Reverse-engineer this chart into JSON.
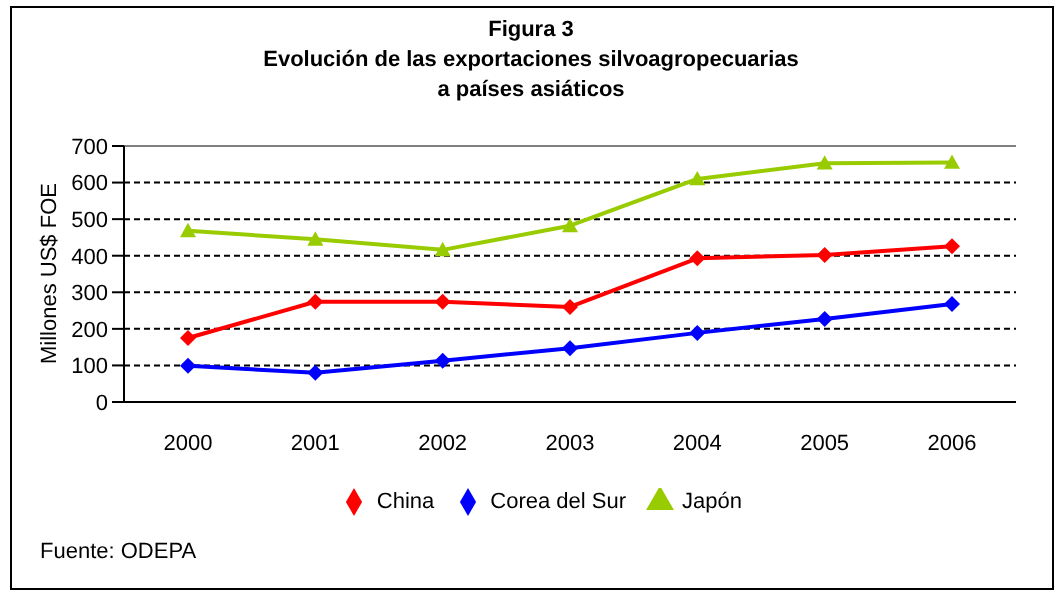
{
  "chart_data": {
    "type": "line",
    "title": "Figura 3",
    "subtitle": "Evolución de las exportaciones silvoagropecuarias\na países asiáticos",
    "ylabel": "Millones US$ FOE",
    "categories": [
      "2000",
      "2001",
      "2002",
      "2003",
      "2004",
      "2005",
      "2006"
    ],
    "series": [
      {
        "name": "Corea del Sur",
        "color": "#0000ff",
        "marker": "diamond",
        "values": [
          99,
          80,
          113,
          147,
          189,
          227,
          268
        ]
      },
      {
        "name": "China",
        "color": "#ff0000",
        "marker": "diamond",
        "values": [
          175,
          274,
          274,
          260,
          393,
          402,
          426
        ]
      },
      {
        "name": "Japón",
        "color": "#99cc00",
        "marker": "triangle",
        "values": [
          468,
          445,
          416,
          482,
          610,
          653,
          655
        ]
      }
    ],
    "ylim": [
      0,
      700
    ],
    "yticks": [
      0,
      100,
      200,
      300,
      400,
      500,
      600,
      700
    ],
    "grid": "y",
    "line_style": "solid",
    "legend": "bottom",
    "annotations": [
      "Fuente: ODEPA"
    ]
  }
}
